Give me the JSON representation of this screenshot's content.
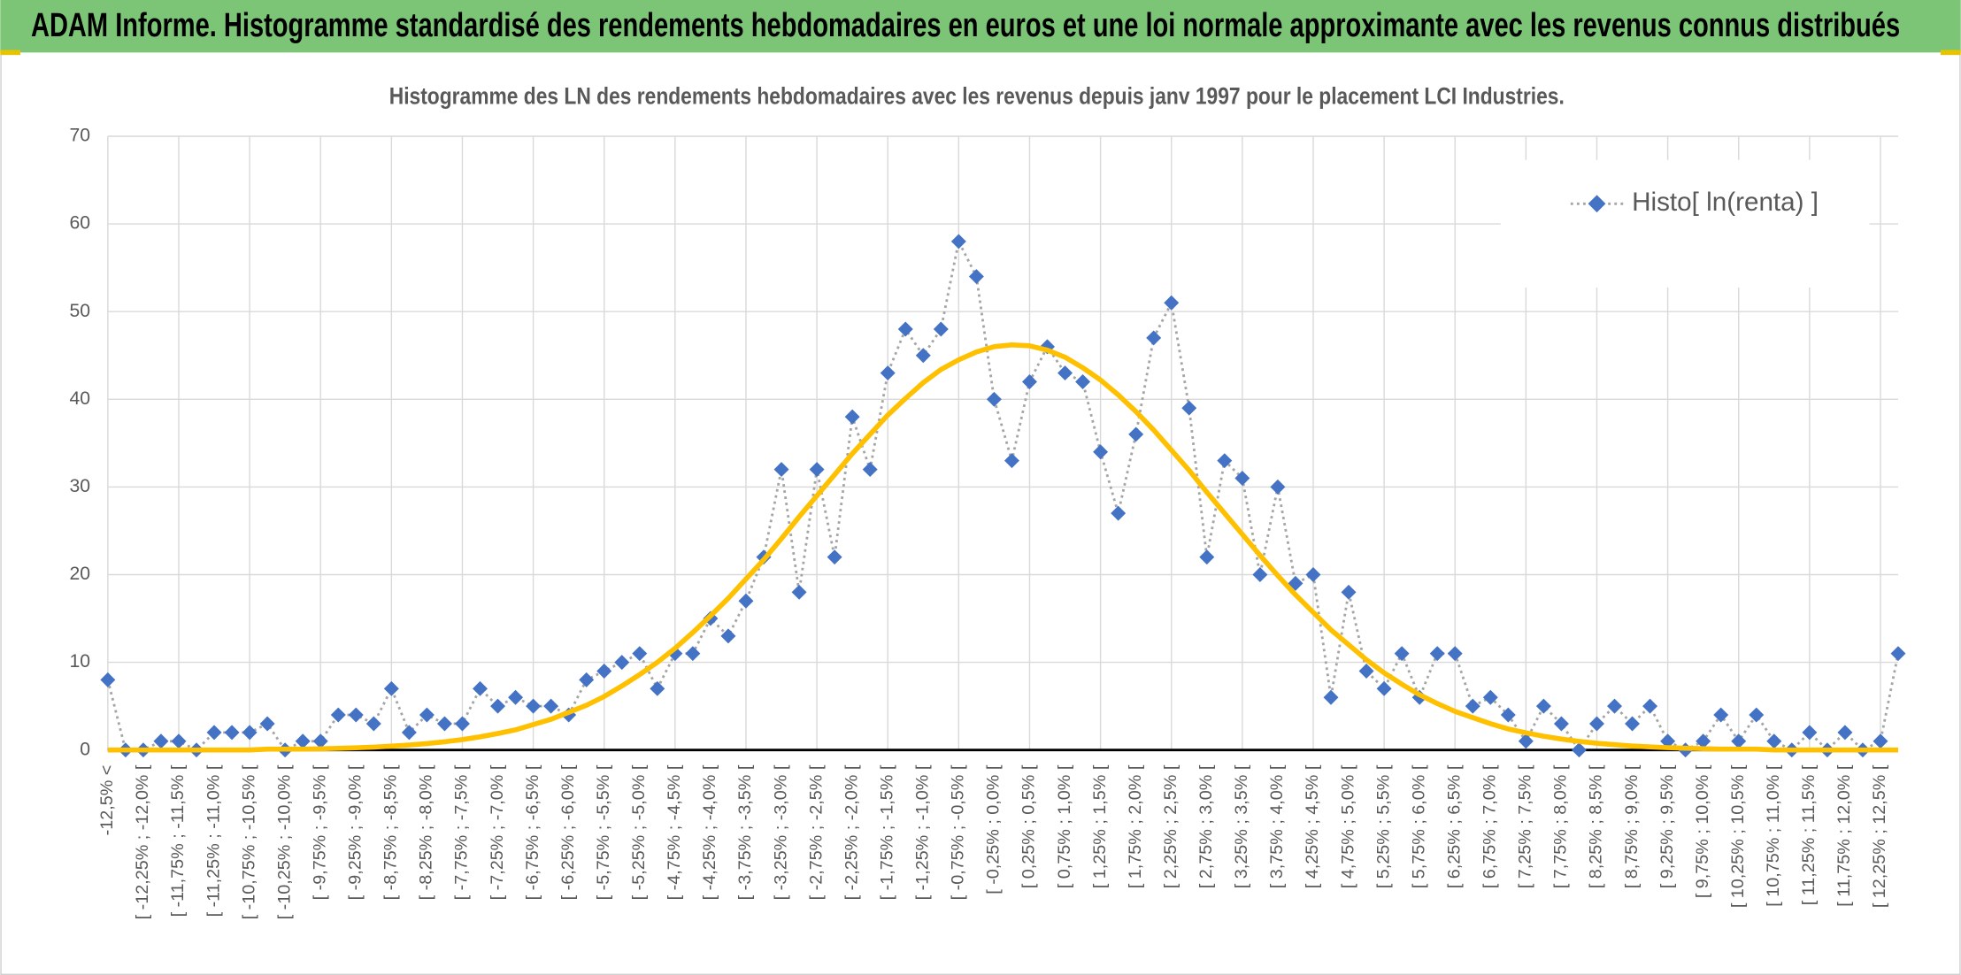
{
  "header": {
    "title": "ADAM Informe. Histogramme standardisé des rendements hebdomadaires en euros et une loi normale approximante avec les revenus connus distribués"
  },
  "chart_data": {
    "type": "line",
    "title": "Histogramme des LN des rendements hebdomadaires avec les revenus depuis janv 1997 pour le placement LCI Industries.",
    "categories": [
      "-12,5% <",
      null,
      "[ -12,25% ; -12,0% [",
      null,
      "[ -11,75% ; -11,5% [",
      null,
      "[ -11,25% ; -11,0% [",
      null,
      "[ -10,75% ; -10,5% [",
      null,
      "[ -10,25% ; -10,0% [",
      null,
      "[ -9,75% ; -9,5% [",
      null,
      "[ -9,25% ; -9,0% [",
      null,
      "[ -8,75% ; -8,5% [",
      null,
      "[ -8,25% ; -8,0% [",
      null,
      "[ -7,75% ; -7,5% [",
      null,
      "[ -7,25% ; -7,0% [",
      null,
      "[ -6,75% ; -6,5% [",
      null,
      "[ -6,25% ; -6,0% [",
      null,
      "[ -5,75% ; -5,5% [",
      null,
      "[ -5,25% ; -5,0% [",
      null,
      "[ -4,75% ; -4,5% [",
      null,
      "[ -4,25% ; -4,0% [",
      null,
      "[ -3,75% ; -3,5% [",
      null,
      "[ -3,25% ; -3,0% [",
      null,
      "[ -2,75% ; -2,5% [",
      null,
      "[ -2,25% ; -2,0% [",
      null,
      "[ -1,75% ; -1,5% [",
      null,
      "[ -1,25% ; -1,0% [",
      null,
      "[ -0,75% ; -0,5% [",
      null,
      "[ -0,25% ; 0,0% [",
      null,
      "[ 0,25% ; 0,5% [",
      null,
      "[ 0,75% ; 1,0% [",
      null,
      "[ 1,25% ; 1,5% [",
      null,
      "[ 1,75% ; 2,0% [",
      null,
      "[ 2,25% ; 2,5% [",
      null,
      "[ 2,75% ; 3,0% [",
      null,
      "[ 3,25% ; 3,5% [",
      null,
      "[ 3,75% ; 4,0% [",
      null,
      "[ 4,25% ; 4,5% [",
      null,
      "[ 4,75% ; 5,0% [",
      null,
      "[ 5,25% ; 5,5% [",
      null,
      "[ 5,75% ; 6,0% [",
      null,
      "[ 6,25% ; 6,5% [",
      null,
      "[ 6,75% ; 7,0% [",
      null,
      "[ 7,25% ; 7,5% [",
      null,
      "[ 7,75% ; 8,0% [",
      null,
      "[ 8,25% ; 8,5% [",
      null,
      "[ 8,75% ; 9,0% [",
      null,
      "[ 9,25% ; 9,5% [",
      null,
      "[ 9,75% ; 10,0% [",
      null,
      "[ 10,25% ; 10,5% [",
      null,
      "[ 10,75% ; 11,0% [",
      null,
      "[ 11,25% ; 11,5% [",
      null,
      "[ 11,75% ; 12,0% [",
      null,
      "[ 12,25% ; 12,5% [",
      null
    ],
    "series": [
      {
        "name": "Histo[ ln(renta) ]",
        "color": "#4472c4",
        "line_style": "dotted",
        "marker": "diamond",
        "values": [
          8,
          0,
          0,
          1,
          1,
          0,
          2,
          2,
          2,
          3,
          0,
          1,
          1,
          4,
          4,
          3,
          7,
          2,
          4,
          3,
          3,
          7,
          5,
          6,
          5,
          5,
          4,
          8,
          9,
          10,
          11,
          7,
          11,
          11,
          15,
          13,
          17,
          22,
          32,
          18,
          32,
          22,
          38,
          32,
          43,
          48,
          45,
          48,
          58,
          54,
          40,
          33,
          42,
          46,
          43,
          42,
          34,
          27,
          36,
          47,
          51,
          39,
          22,
          33,
          31,
          20,
          30,
          19,
          20,
          6,
          18,
          9,
          7,
          11,
          6,
          11,
          11,
          5,
          6,
          4,
          1,
          5,
          3,
          0,
          3,
          5,
          3,
          5,
          1,
          0,
          1,
          4,
          1,
          4,
          1,
          0,
          2,
          0,
          2,
          0,
          1,
          11
        ]
      },
      {
        "color": "#ffc000",
        "line_style": "solid",
        "values": [
          0,
          0,
          0,
          0,
          0,
          0,
          0,
          0,
          0,
          0.1,
          0.1,
          0.1,
          0.14,
          0.19,
          0.25,
          0.33,
          0.44,
          0.57,
          0.73,
          0.94,
          1.19,
          1.5,
          1.88,
          2.3,
          2.9,
          3.5,
          4.3,
          5.1,
          6.1,
          7.3,
          8.6,
          10.0,
          11.6,
          13.4,
          15.3,
          17.3,
          19.5,
          21.7,
          24.1,
          26.6,
          29.0,
          31.4,
          33.8,
          36.0,
          38.2,
          40.1,
          41.9,
          43.4,
          44.5,
          45.4,
          46.0,
          46.2,
          46.1,
          45.6,
          44.8,
          43.6,
          42.2,
          40.5,
          38.6,
          36.5,
          34.2,
          31.9,
          29.4,
          27.0,
          24.6,
          22.2,
          19.9,
          17.7,
          15.7,
          13.7,
          12.0,
          10.3,
          8.8,
          7.5,
          6.3,
          5.3,
          4.4,
          3.7,
          3.0,
          2.4,
          1.96,
          1.57,
          1.25,
          0.98,
          0.77,
          0.6,
          0.46,
          0.35,
          0.27,
          0.2,
          0.15,
          0.1,
          0.1,
          0.1,
          0,
          0,
          0,
          0,
          0,
          0,
          0,
          0
        ]
      }
    ],
    "ylim": [
      0,
      70
    ],
    "yticks": [
      0,
      10,
      20,
      30,
      40,
      50,
      60,
      70
    ],
    "grid": true,
    "legend": "upper right"
  }
}
